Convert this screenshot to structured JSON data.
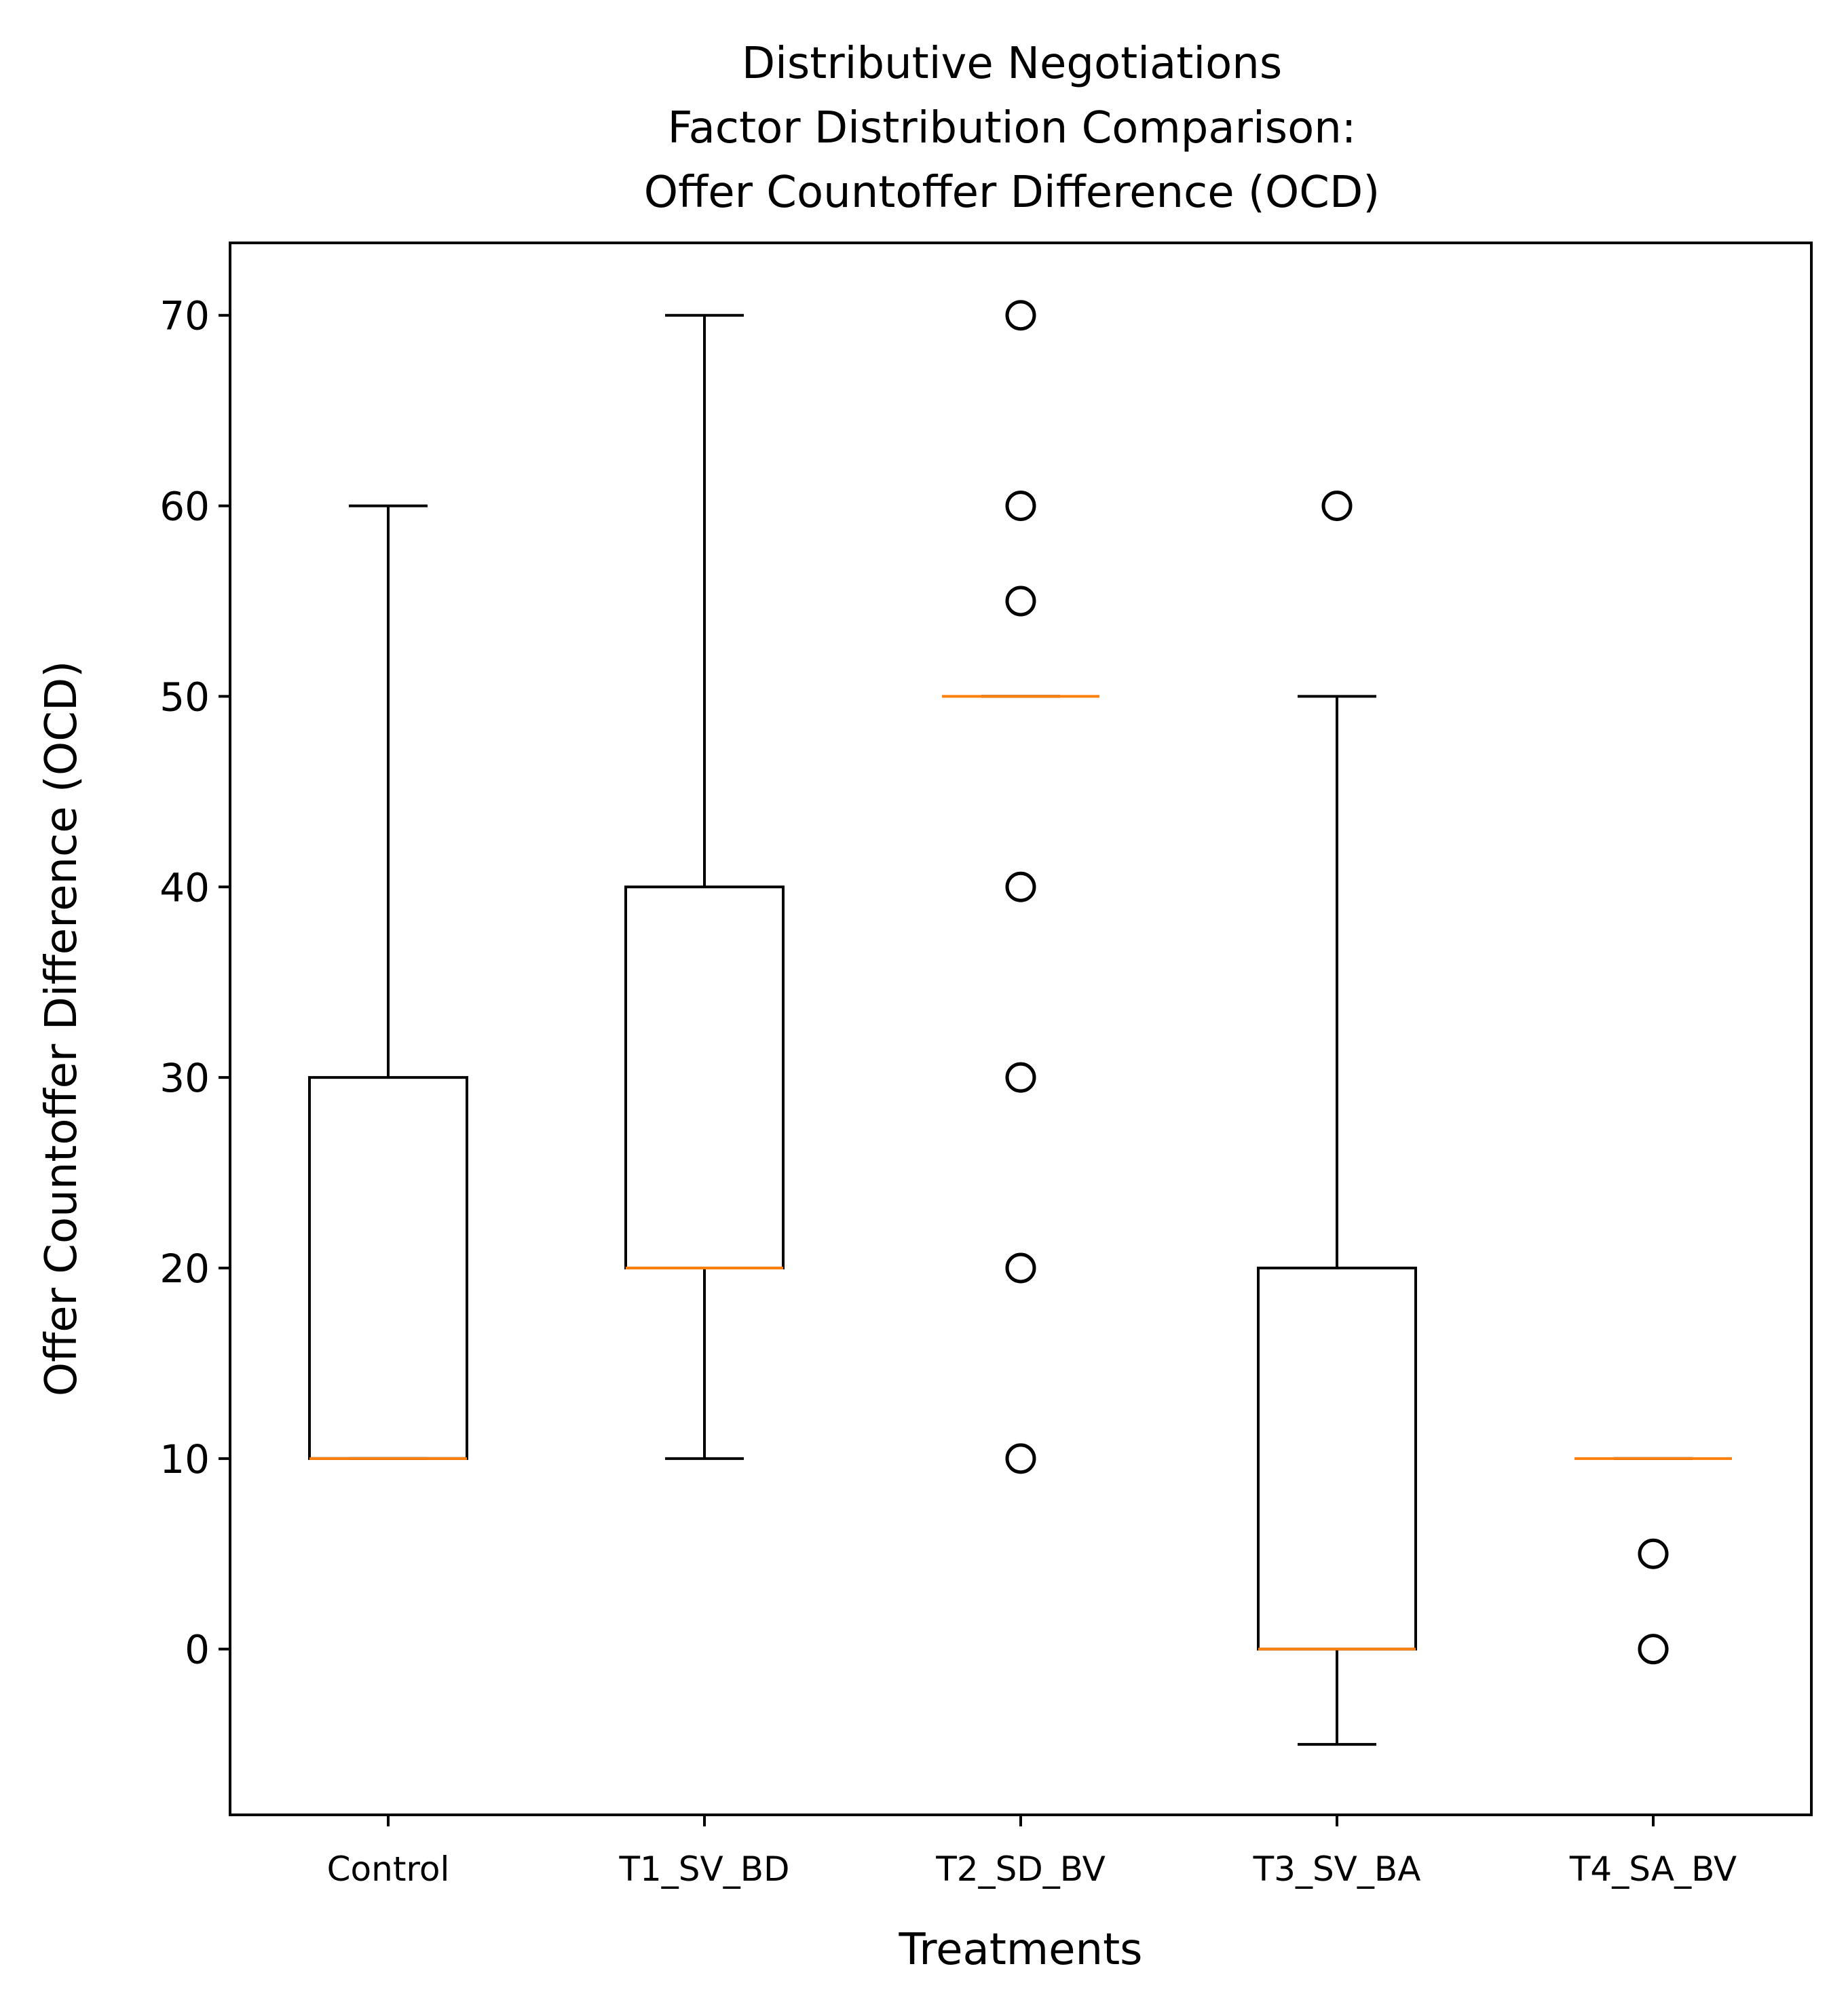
{
  "chart_data": {
    "type": "boxplot",
    "title_lines": [
      "Distributive Negotiations",
      "Factor Distribution Comparison:",
      "Offer Countoffer Difference (OCD)"
    ],
    "xlabel": "Treatments",
    "ylabel": "Offer Countoffer Difference (OCD)",
    "ylim": [
      -8.7,
      73.8
    ],
    "yticks": [
      0,
      10,
      20,
      30,
      40,
      50,
      60,
      70
    ],
    "categories": [
      "Control",
      "T1_SV_BD",
      "T2_SD_BV",
      "T3_SV_BA",
      "T4_SA_BV"
    ],
    "boxes": [
      {
        "q1": 10,
        "median": 10,
        "q3": 30,
        "whisker_low": 10,
        "whisker_high": 60,
        "fliers": []
      },
      {
        "q1": 20,
        "median": 20,
        "q3": 40,
        "whisker_low": 10,
        "whisker_high": 70,
        "fliers": []
      },
      {
        "q1": 50,
        "median": 50,
        "q3": 50,
        "whisker_low": 50,
        "whisker_high": 50,
        "fliers": [
          10,
          20,
          30,
          40,
          55,
          60,
          70
        ]
      },
      {
        "q1": 0,
        "median": 0,
        "q3": 20,
        "whisker_low": -5,
        "whisker_high": 50,
        "fliers": [
          60
        ]
      },
      {
        "q1": 10,
        "median": 10,
        "q3": 10,
        "whisker_low": 10,
        "whisker_high": 10,
        "fliers": [
          0,
          5
        ]
      }
    ],
    "colors": {
      "box": "#000000",
      "median": "#ff7f0e",
      "flier": "#000000"
    }
  }
}
